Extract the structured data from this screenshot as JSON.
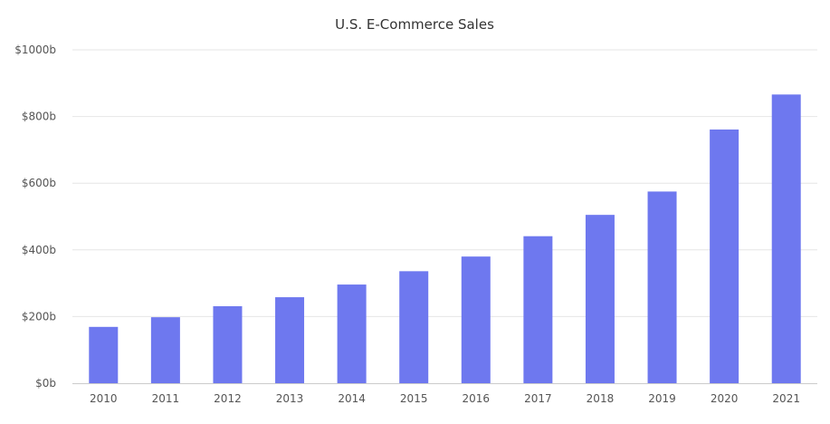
{
  "chart_data": {
    "type": "bar",
    "title": "U.S. E-Commerce Sales",
    "xlabel": "",
    "ylabel": "",
    "categories": [
      "2010",
      "2011",
      "2012",
      "2013",
      "2014",
      "2015",
      "2016",
      "2017",
      "2018",
      "2019",
      "2020",
      "2021"
    ],
    "values": [
      169,
      198,
      231,
      258,
      296,
      336,
      380,
      441,
      505,
      575,
      761,
      866
    ],
    "ylim": [
      0,
      1000
    ],
    "yticks": [
      0,
      200,
      400,
      600,
      800,
      1000
    ],
    "ytick_labels": [
      "$0b",
      "$200b",
      "$400b",
      "$600b",
      "$800b",
      "$1000b"
    ],
    "grid": true,
    "colors": {
      "bar": "#6e78ef"
    }
  }
}
